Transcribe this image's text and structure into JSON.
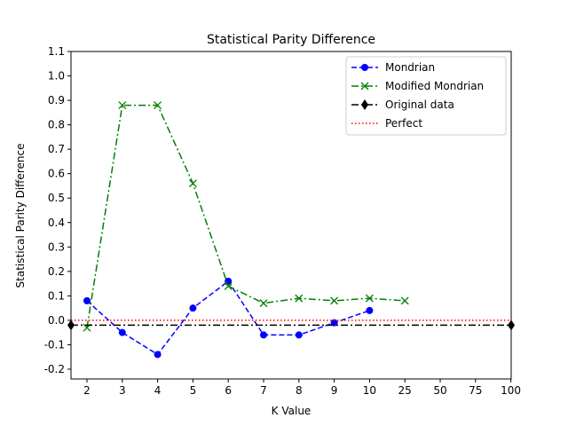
{
  "chart_data": {
    "type": "line",
    "title": "Statistical Parity Difference",
    "xlabel": "K Value",
    "ylabel": "Statistical Parity Difference",
    "categories": [
      "2",
      "3",
      "4",
      "5",
      "6",
      "7",
      "8",
      "9",
      "10",
      "25",
      "50",
      "75",
      "100"
    ],
    "ylim": [
      -0.24,
      1.1
    ],
    "yticks": [
      "-0.2",
      "-0.1",
      "0.0",
      "0.1",
      "0.2",
      "0.3",
      "0.4",
      "0.5",
      "0.6",
      "0.7",
      "0.8",
      "0.9",
      "1.0",
      "1.1"
    ],
    "legend_position": "top-right",
    "grid": false,
    "series": [
      {
        "name": "Mondrian",
        "color": "#0000ff",
        "line_style": "dashed",
        "marker": "circle",
        "values": [
          0.08,
          -0.05,
          -0.14,
          0.05,
          0.16,
          -0.06,
          -0.06,
          -0.01,
          0.04,
          null,
          null,
          null,
          null
        ]
      },
      {
        "name": "Modified Mondrian",
        "color": "#008000",
        "line_style": "dash-dot",
        "marker": "x",
        "values": [
          -0.03,
          0.88,
          0.88,
          0.56,
          0.14,
          0.07,
          0.09,
          0.08,
          0.09,
          0.08,
          null,
          null,
          null
        ]
      },
      {
        "name": "Original data",
        "color": "#000000",
        "line_style": "dash-dot",
        "marker": "diamond",
        "value": -0.02
      },
      {
        "name": "Perfect",
        "color": "#ff0000",
        "line_style": "dotted",
        "marker": "none",
        "value": 0.0
      }
    ]
  }
}
